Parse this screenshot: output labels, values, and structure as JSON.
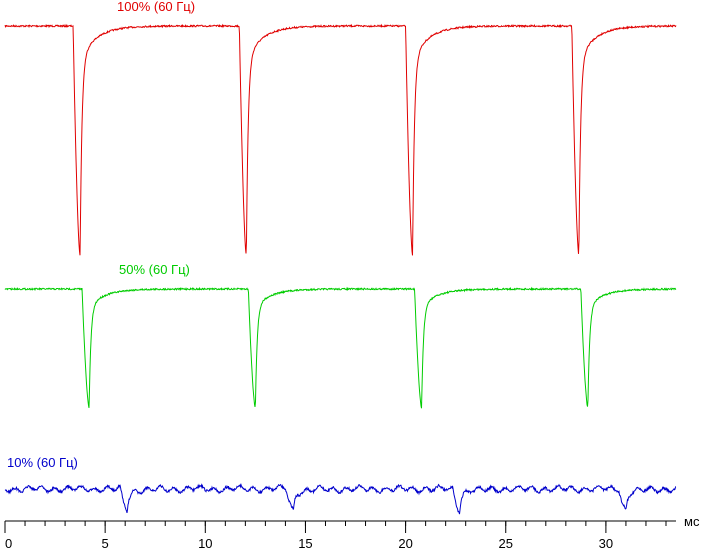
{
  "chart_data": {
    "type": "line",
    "xlabel": "мс",
    "xlim": [
      0,
      33.5
    ],
    "x_ticks": [
      0,
      5,
      10,
      15,
      20,
      25,
      30
    ],
    "x_tick_labels": [
      "0",
      "5",
      "10",
      "15",
      "20",
      "25",
      "30"
    ],
    "x_minor_step": 1,
    "grid": false,
    "legend": "none",
    "series": [
      {
        "name": "100% (60 Гц)",
        "color": "#e00000",
        "dips_ms": [
          3.75,
          12.05,
          20.35,
          28.65
        ],
        "dip_depth": 1.0,
        "noise": 0.01
      },
      {
        "name": "50% (60 Гц)",
        "color": "#00cc00",
        "dips_ms": [
          4.2,
          12.5,
          20.8,
          29.1
        ],
        "dip_depth": 1.0,
        "noise": 0.01
      },
      {
        "name": "10% (60 Гц)",
        "color": "#0000cc",
        "dips_ms": [
          6.1,
          14.4,
          22.7,
          31.0
        ],
        "dip_depth": 1.0,
        "noise": 0.08
      }
    ]
  }
}
